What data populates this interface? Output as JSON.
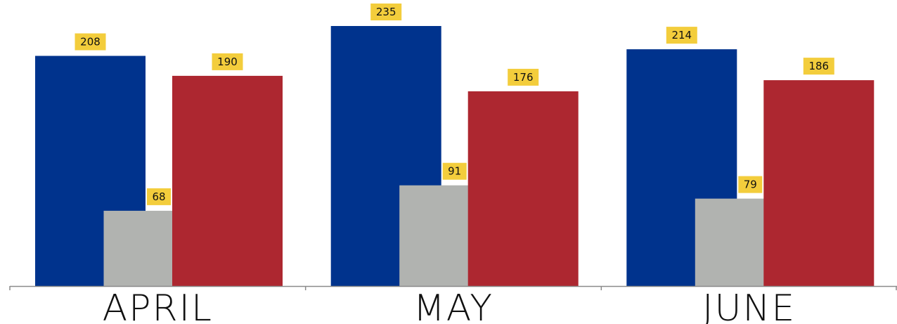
{
  "chart_data": {
    "type": "bar",
    "categories": [
      "APRIL",
      "MAY",
      "JUNE"
    ],
    "series": [
      {
        "values": [
          208,
          235,
          214
        ],
        "color": "#00338d"
      },
      {
        "values": [
          68,
          91,
          79
        ],
        "color": "#b1b3b0"
      },
      {
        "values": [
          190,
          176,
          186
        ],
        "color": "#ad2730"
      }
    ],
    "data_labels": true,
    "data_label_color": "#f3cd3c",
    "ylim": [
      0,
      235
    ],
    "grid": false,
    "legend": "none"
  }
}
